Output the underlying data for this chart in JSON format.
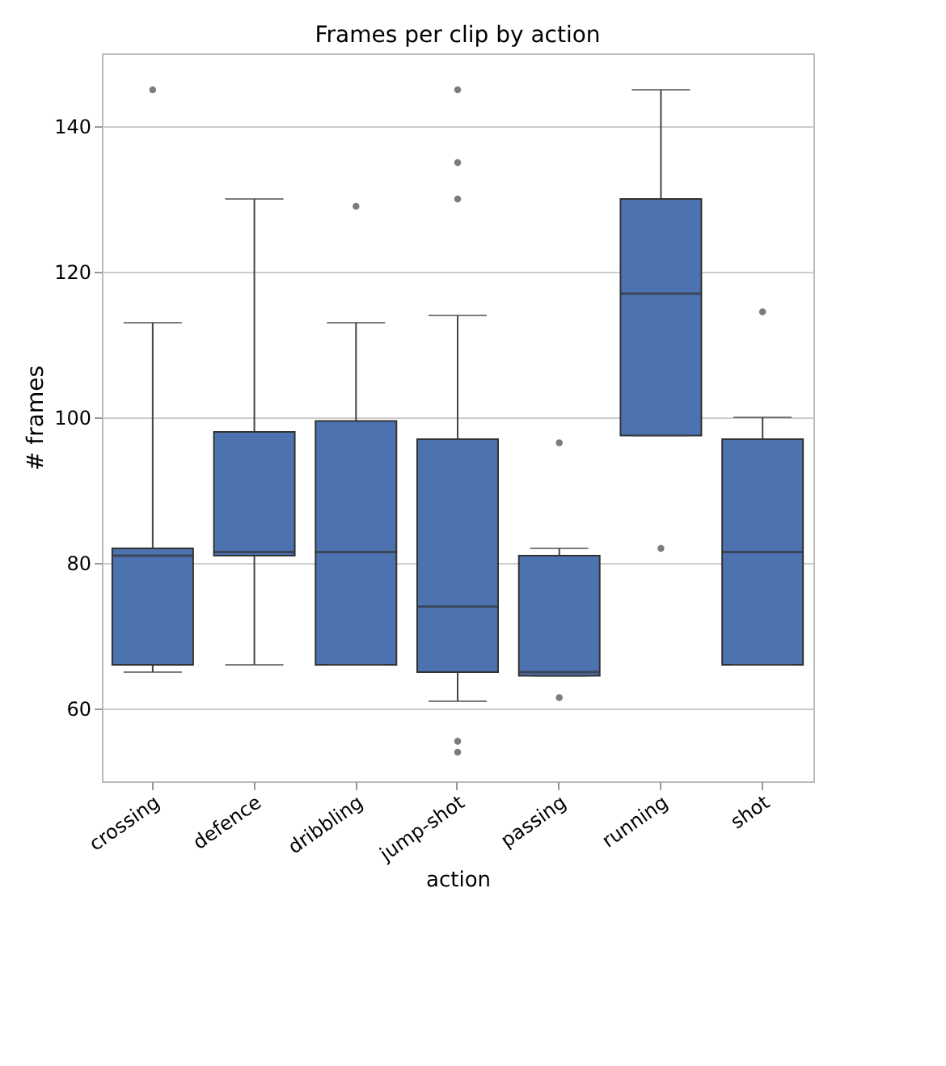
{
  "chart_data": {
    "type": "box",
    "title": "Frames per clip by action",
    "xlabel": "action",
    "ylabel": "# frames",
    "categories": [
      "crossing",
      "defence",
      "dribbling",
      "jump-shot",
      "passing",
      "running",
      "shot"
    ],
    "color": "#4c72b0",
    "boxes": [
      {
        "low": 65,
        "q1": 66,
        "median": 81,
        "q3": 82,
        "high": 113,
        "outliers": [
          145
        ]
      },
      {
        "low": 66,
        "q1": 81,
        "median": 81.5,
        "q3": 98,
        "high": 130
      },
      {
        "low": 66,
        "q1": 66,
        "median": 81.5,
        "q3": 99.5,
        "high": 113,
        "outliers": [
          129
        ]
      },
      {
        "low": 61,
        "q1": 65,
        "median": 74,
        "q3": 97,
        "high": 114,
        "outliers": [
          145,
          135,
          130,
          55.5,
          54
        ]
      },
      {
        "low": 64.5,
        "q1": 64.5,
        "median": 65,
        "q3": 81,
        "high": 82,
        "outliers": [
          96.5,
          61.5
        ]
      },
      {
        "low": 97.5,
        "q1": 97.5,
        "median": 117,
        "q3": 130,
        "high": 145,
        "outliers": [
          82
        ]
      },
      {
        "low": 66,
        "q1": 66,
        "median": 81.5,
        "q3": 97,
        "high": 100,
        "outliers": [
          114.5
        ]
      }
    ],
    "ylim": [
      50,
      150
    ],
    "yticks": [
      60,
      80,
      100,
      120,
      140
    ],
    "grid": "y"
  }
}
